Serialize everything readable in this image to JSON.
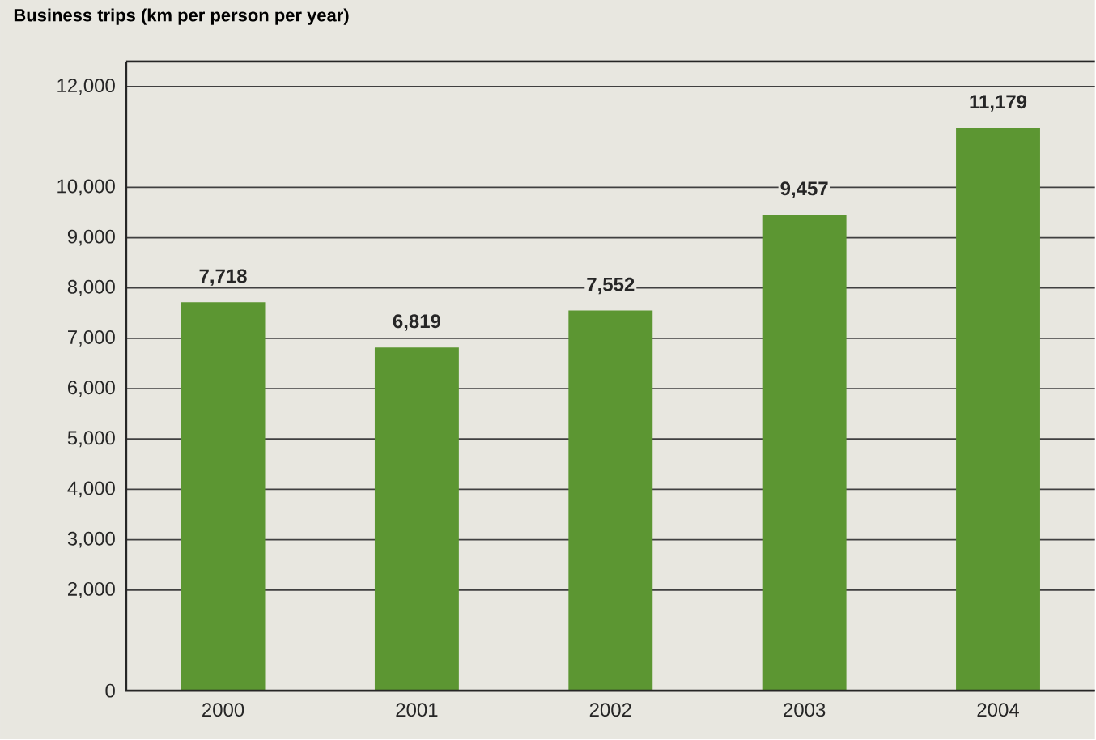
{
  "chart_data": {
    "type": "bar",
    "title": "Business trips (km per person per year)",
    "categories": [
      "2000",
      "2001",
      "2002",
      "2003",
      "2004"
    ],
    "values": [
      7718,
      6819,
      7552,
      9457,
      11179
    ],
    "color": "#5c9632",
    "value_labels": [
      "7,718",
      "6,819",
      "7,552",
      "9,457",
      "11,179"
    ],
    "grid": "y",
    "ylim": [
      0,
      12500
    ],
    "yticks": [
      0,
      {
        "value": 2000,
        "label": "2,000"
      },
      {
        "value": 3000,
        "label": "3,000"
      },
      {
        "value": 4000,
        "label": "4,000"
      },
      {
        "value": 5000,
        "label": "5,000"
      },
      {
        "value": 6000,
        "label": "6,000"
      },
      {
        "value": 7000,
        "label": "7,000"
      },
      {
        "value": 8000,
        "label": "8,000"
      },
      {
        "value": 9000,
        "label": "9,000"
      },
      {
        "value": 10000,
        "label": "10,000"
      },
      {
        "value": 12000,
        "label": "12,000"
      }
    ]
  }
}
